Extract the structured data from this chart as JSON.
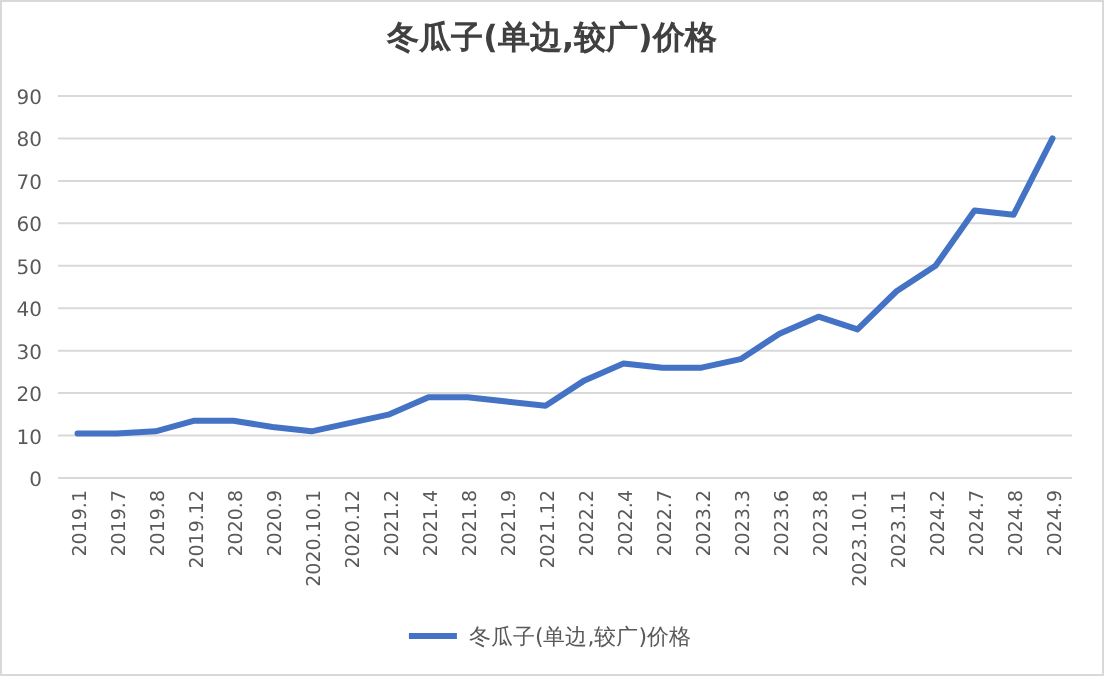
{
  "chart_data": {
    "type": "line",
    "title": "冬瓜子(单边,较广)价格",
    "categories": [
      "2019.1",
      "2019.7",
      "2019.8",
      "2019.12",
      "2020.8",
      "2020.9",
      "2020.10.1",
      "2020.12",
      "2021.2",
      "2021.4",
      "2021.8",
      "2021.9",
      "2021.12",
      "2022.2",
      "2022.4",
      "2022.7",
      "2023.2",
      "2023.3",
      "2023.6",
      "2023.8",
      "2023.10.1",
      "2023.11",
      "2024.2",
      "2024.7",
      "2024.8",
      "2024.9"
    ],
    "series": [
      {
        "name": "冬瓜子(单边,较广)价格",
        "color": "#4472c4",
        "values": [
          10.5,
          10.5,
          11,
          13.5,
          13.5,
          12,
          11,
          13,
          15,
          19,
          19,
          18,
          17,
          23,
          27,
          26,
          26,
          28,
          34,
          38,
          35,
          44,
          50,
          63,
          62,
          80
        ]
      }
    ],
    "ylim": [
      0,
      90
    ],
    "yticks": [
      0,
      10,
      20,
      30,
      40,
      50,
      60,
      70,
      80,
      90
    ],
    "grid": "y",
    "legend": "bottom",
    "marker": "none",
    "line_style": "solid"
  }
}
